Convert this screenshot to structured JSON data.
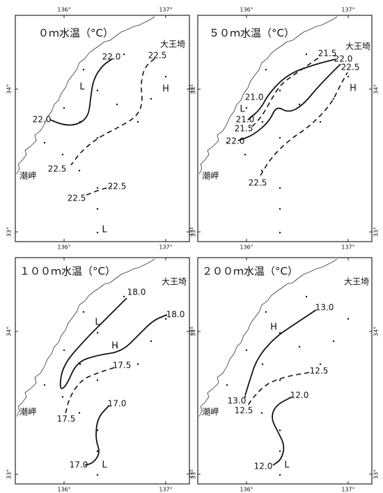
{
  "panels": [
    {
      "title": "０ｍ水温（°C）",
      "lon_labels": [
        "136°",
        "137°"
      ],
      "lat_labels": [
        "34°",
        "33°"
      ],
      "places": [
        "大王埼",
        "潮岬"
      ],
      "contour_labels": [
        "22.0",
        "22.0",
        "22.5",
        "22.5",
        "22.5",
        "22.5"
      ],
      "markers": [
        "L",
        "H",
        "L"
      ]
    },
    {
      "title": "５０ｍ水温（°C）",
      "lon_labels": [
        "136°",
        "137°"
      ],
      "lat_labels": [
        "34°",
        "33°"
      ],
      "places": [
        "大王埼",
        "潮岬"
      ],
      "contour_labels": [
        "21.5",
        "22.0",
        "22.5",
        "21.0",
        "21.0",
        "21.5",
        "22.0",
        "22.5"
      ],
      "markers": [
        "H",
        "L"
      ]
    },
    {
      "title": "１００ｍ水温（°C）",
      "lon_labels": [
        "136°",
        "137°"
      ],
      "lat_labels": [
        "34°",
        "33°"
      ],
      "places": [
        "大王埼",
        "潮岬"
      ],
      "contour_labels": [
        "18.0",
        "18.0",
        "17.5",
        "17.5",
        "17.0",
        "17.0"
      ],
      "markers": [
        "L",
        "H",
        "L"
      ]
    },
    {
      "title": "２００ｍ水温（°C）",
      "lon_labels": [
        "136°",
        "137°"
      ],
      "lat_labels": [
        "34°",
        "33°"
      ],
      "places": [
        "大王埼",
        "潮岬"
      ],
      "contour_labels": [
        "13.0",
        "12.5",
        "13.0",
        "12.5",
        "12.0",
        "12.0"
      ],
      "markers": [
        "H",
        "L"
      ]
    }
  ]
}
